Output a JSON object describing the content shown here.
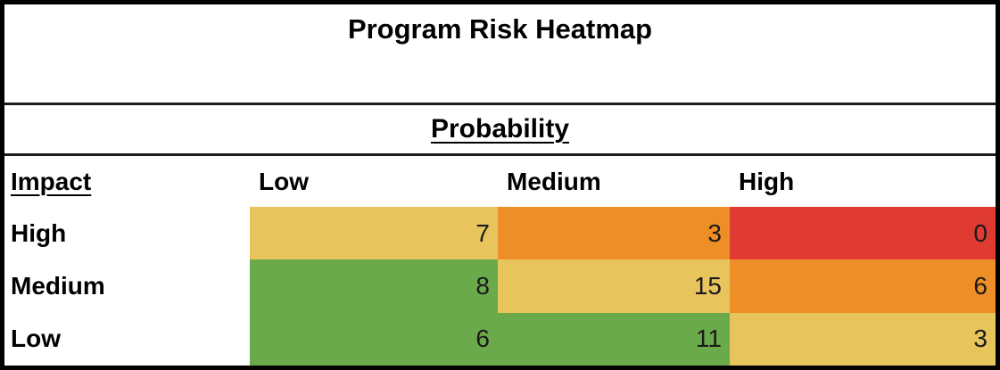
{
  "title": "Program Risk Heatmap",
  "probability_label": "Probability",
  "impact_label": "Impact",
  "palette": {
    "green": "#6BAA4B",
    "yellow": "#E8C45C",
    "orange": "#EE8E26",
    "red": "#E03B32",
    "border": "#000000",
    "divider": "#1c1c1c",
    "text": "#000000"
  },
  "chart_data": {
    "type": "heatmap",
    "title": "Program Risk Heatmap",
    "x_axis_label": "Probability",
    "y_axis_label": "Impact",
    "x_categories": [
      "Low",
      "Medium",
      "High"
    ],
    "y_categories": [
      "High",
      "Medium",
      "Low"
    ],
    "values": [
      [
        7,
        3,
        0
      ],
      [
        8,
        15,
        6
      ],
      [
        6,
        11,
        3
      ]
    ],
    "cell_colors": [
      [
        "yellow",
        "orange",
        "red"
      ],
      [
        "green",
        "yellow",
        "orange"
      ],
      [
        "green",
        "green",
        "yellow"
      ]
    ],
    "legend": "none",
    "grid": "off"
  }
}
